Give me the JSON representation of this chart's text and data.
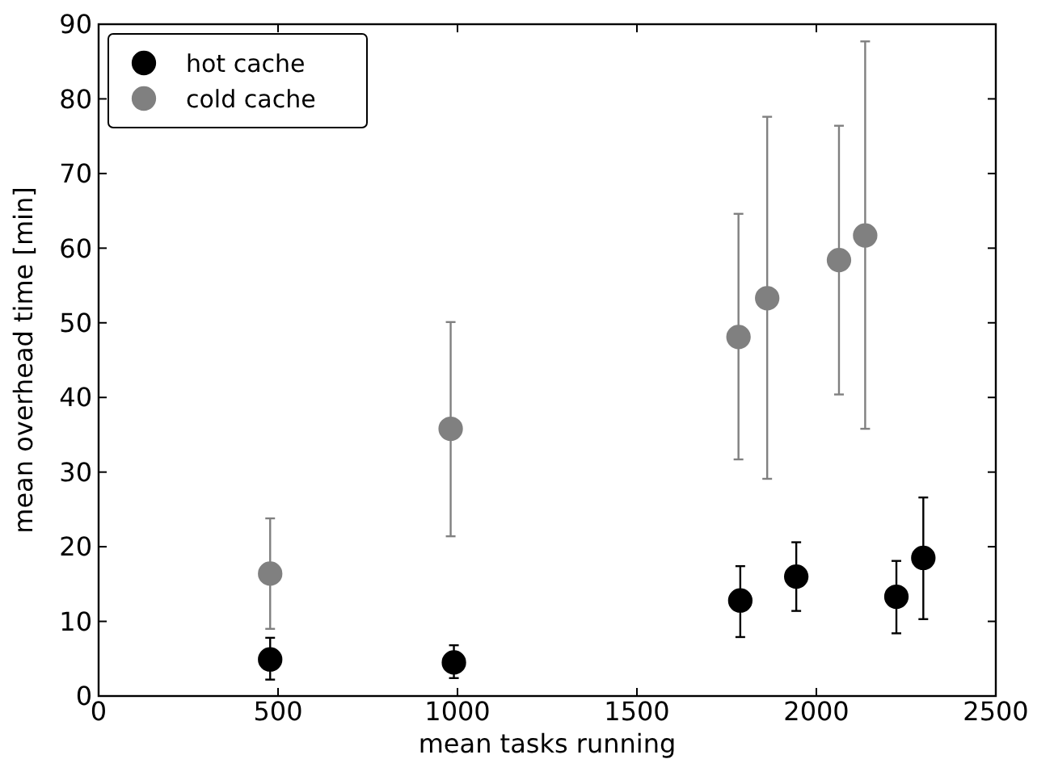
{
  "chart_data": {
    "type": "scatter",
    "xlabel": "mean tasks running",
    "ylabel": "mean overhead time [min]",
    "xlim": [
      0,
      2500
    ],
    "ylim": [
      0,
      90
    ],
    "xticks": [
      0,
      500,
      1000,
      1500,
      2000,
      2500
    ],
    "yticks": [
      0,
      10,
      20,
      30,
      40,
      50,
      60,
      70,
      80,
      90
    ],
    "grid": false,
    "legend": "top left",
    "marker": "circle",
    "series": [
      {
        "name": "hot cache",
        "color": "#000000",
        "x": [
          478,
          990,
          1788,
          1944,
          2223,
          2298
        ],
        "values": [
          4.9,
          4.5,
          12.8,
          16.0,
          13.3,
          18.5
        ],
        "errors": [
          [
            2.2,
            7.8
          ],
          [
            2.4,
            6.8
          ],
          [
            7.9,
            17.4
          ],
          [
            11.4,
            20.6
          ],
          [
            8.4,
            18.1
          ],
          [
            10.3,
            26.6
          ]
        ]
      },
      {
        "name": "cold cache",
        "color": "#808080",
        "x": [
          478,
          981,
          1783,
          1863,
          2063,
          2136
        ],
        "values": [
          16.4,
          35.8,
          48.1,
          53.3,
          58.4,
          61.7
        ],
        "errors": [
          [
            9.0,
            23.8
          ],
          [
            21.4,
            50.1
          ],
          [
            31.7,
            64.6
          ],
          [
            29.1,
            77.6
          ],
          [
            40.4,
            76.4
          ],
          [
            35.8,
            87.7
          ]
        ]
      }
    ]
  }
}
